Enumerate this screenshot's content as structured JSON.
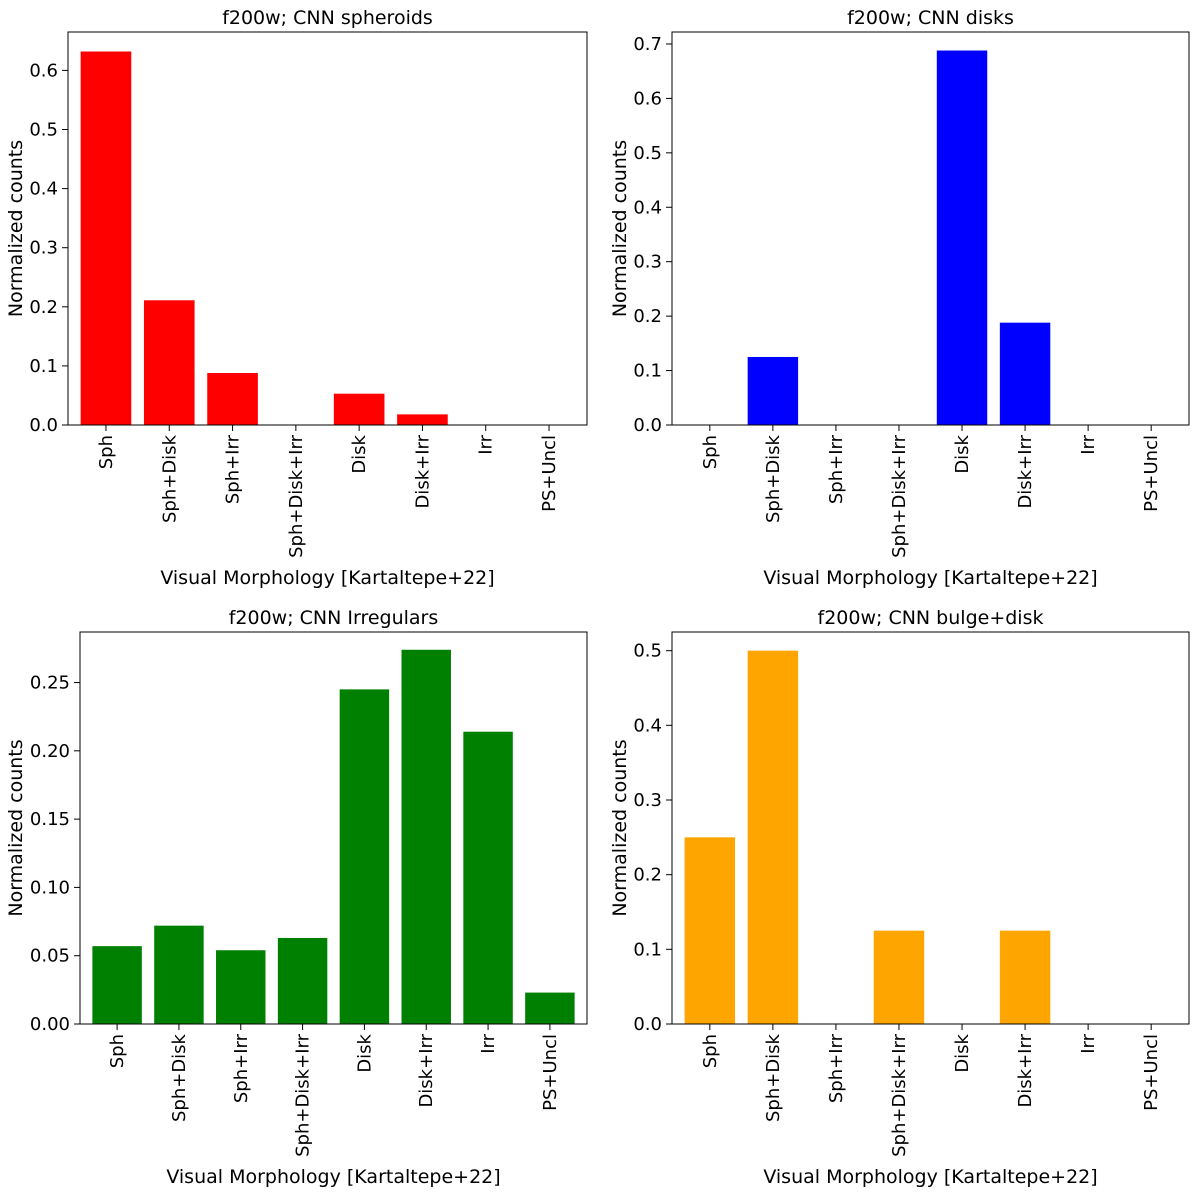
{
  "chart_data": [
    {
      "type": "bar",
      "title": "f200w; CNN spheroids",
      "xlabel": "Visual Morphology [Kartaltepe+22]",
      "ylabel": "Normalized counts",
      "categories": [
        "Sph",
        "Sph+Disk",
        "Sph+Irr",
        "Sph+Disk+Irr",
        "Disk",
        "Disk+Irr",
        "Irr",
        "PS+Uncl"
      ],
      "values": [
        0.632,
        0.211,
        0.088,
        0.0,
        0.053,
        0.018,
        0.0,
        0.0
      ],
      "ylim": [
        0,
        0.665
      ],
      "yticks": [
        "0.0",
        "0.1",
        "0.2",
        "0.3",
        "0.4",
        "0.5",
        "0.6"
      ],
      "color": "#ff0000",
      "grid": false
    },
    {
      "type": "bar",
      "title": "f200w; CNN disks",
      "xlabel": "Visual Morphology [Kartaltepe+22]",
      "ylabel": "Normalized counts",
      "categories": [
        "Sph",
        "Sph+Disk",
        "Sph+Irr",
        "Sph+Disk+Irr",
        "Disk",
        "Disk+Irr",
        "Irr",
        "PS+Uncl"
      ],
      "values": [
        0.0,
        0.125,
        0.0,
        0.0,
        0.688,
        0.188,
        0.0,
        0.0
      ],
      "ylim": [
        0,
        0.722
      ],
      "yticks": [
        "0.0",
        "0.1",
        "0.2",
        "0.3",
        "0.4",
        "0.5",
        "0.6",
        "0.7"
      ],
      "color": "#0000ff",
      "grid": false
    },
    {
      "type": "bar",
      "title": "f200w; CNN Irregulars",
      "xlabel": "Visual Morphology [Kartaltepe+22]",
      "ylabel": "Normalized counts",
      "categories": [
        "Sph",
        "Sph+Disk",
        "Sph+Irr",
        "Sph+Disk+Irr",
        "Disk",
        "Disk+Irr",
        "Irr",
        "PS+Uncl"
      ],
      "values": [
        0.057,
        0.072,
        0.054,
        0.063,
        0.245,
        0.274,
        0.214,
        0.023
      ],
      "ylim": [
        0,
        0.287
      ],
      "yticks": [
        "0.00",
        "0.05",
        "0.10",
        "0.15",
        "0.20",
        "0.25"
      ],
      "color": "#008000",
      "grid": false
    },
    {
      "type": "bar",
      "title": "f200w; CNN bulge+disk",
      "xlabel": "Visual Morphology [Kartaltepe+22]",
      "ylabel": "Normalized counts",
      "categories": [
        "Sph",
        "Sph+Disk",
        "Sph+Irr",
        "Sph+Disk+Irr",
        "Disk",
        "Disk+Irr",
        "Irr",
        "PS+Uncl"
      ],
      "values": [
        0.25,
        0.5,
        0.0,
        0.125,
        0.0,
        0.125,
        0.0,
        0.0
      ],
      "ylim": [
        0,
        0.525
      ],
      "yticks": [
        "0.0",
        "0.1",
        "0.2",
        "0.3",
        "0.4",
        "0.5"
      ],
      "color": "#ffa500",
      "grid": false
    }
  ]
}
